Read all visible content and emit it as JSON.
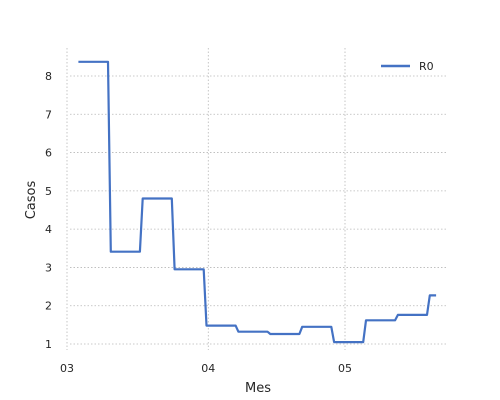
{
  "chart_data": {
    "type": "line",
    "title": "",
    "xlabel": "Mes",
    "ylabel": "Casos",
    "x_axis": {
      "min_day": 2,
      "max_day": 90,
      "ticks": [
        {
          "label": "03",
          "day": 0
        },
        {
          "label": "04",
          "day": 31
        },
        {
          "label": "05",
          "day": 61
        }
      ]
    },
    "y_axis": {
      "min": 0.6,
      "max": 8.7,
      "ticks": [
        1,
        2,
        3,
        4,
        5,
        6,
        7,
        8
      ]
    },
    "grid": true,
    "legend": {
      "position": "top-right"
    },
    "series": [
      {
        "name": "R0",
        "color": "#4472c4",
        "points": [
          [
            2.5,
            8.37
          ],
          [
            9.0,
            8.37
          ],
          [
            9.6,
            3.41
          ],
          [
            16.0,
            3.41
          ],
          [
            16.6,
            4.8
          ],
          [
            23.0,
            4.8
          ],
          [
            23.6,
            2.95
          ],
          [
            30.0,
            2.95
          ],
          [
            30.6,
            1.48
          ],
          [
            37.0,
            1.48
          ],
          [
            37.6,
            1.32
          ],
          [
            44.0,
            1.32
          ],
          [
            44.6,
            1.26
          ],
          [
            51.0,
            1.26
          ],
          [
            51.6,
            1.45
          ],
          [
            58.0,
            1.45
          ],
          [
            58.6,
            1.05
          ],
          [
            65.0,
            1.05
          ],
          [
            65.6,
            1.62
          ],
          [
            72.0,
            1.62
          ],
          [
            72.6,
            1.76
          ],
          [
            79.0,
            1.76
          ],
          [
            79.6,
            2.27
          ],
          [
            81.0,
            2.27
          ]
        ]
      }
    ]
  }
}
